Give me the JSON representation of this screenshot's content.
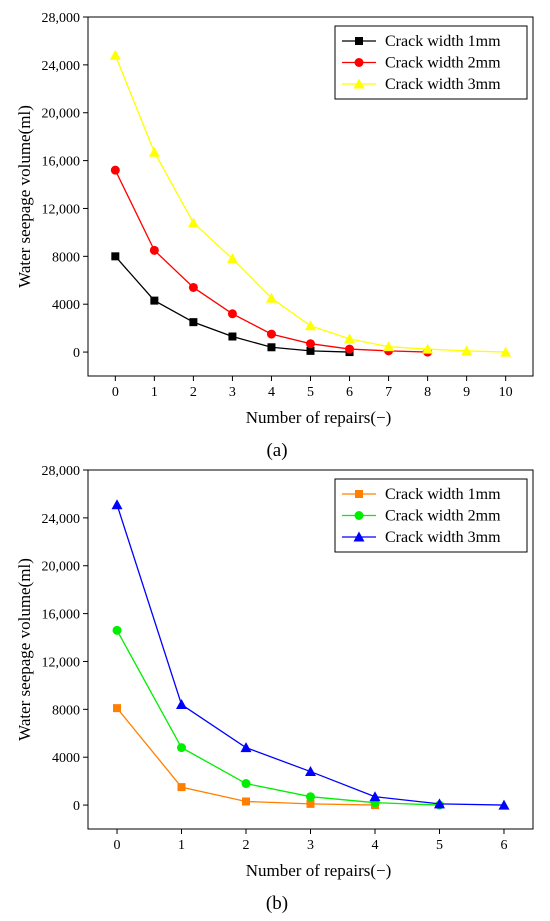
{
  "chart_data": [
    {
      "type": "line",
      "panel_label": "(a)",
      "xlabel": "Number of repairs(−)",
      "ylabel": "Water seepage volume(ml)",
      "xlim": [
        -0.7,
        10.7
      ],
      "ylim": [
        -2000,
        28000
      ],
      "x_ticks": [
        0,
        1,
        2,
        3,
        4,
        5,
        6,
        7,
        8,
        9,
        10
      ],
      "y_ticks": [
        0,
        4000,
        8000,
        12000,
        16000,
        20000,
        24000,
        28000
      ],
      "y_tick_labels": [
        "0",
        "4000",
        "8000",
        "12,000",
        "16,000",
        "20,000",
        "24,000",
        "28,000"
      ],
      "grid": false,
      "legend_position": "top-right",
      "series": [
        {
          "name": "Crack width 1mm",
          "color": "#000000",
          "marker": "square",
          "x": [
            0,
            1,
            2,
            3,
            4,
            5,
            6
          ],
          "y": [
            8000,
            4300,
            2500,
            1300,
            400,
            100,
            0
          ]
        },
        {
          "name": "Crack width 2mm",
          "color": "#ff0000",
          "marker": "circle",
          "x": [
            0,
            1,
            2,
            3,
            4,
            5,
            6,
            7,
            8
          ],
          "y": [
            15200,
            8500,
            5400,
            3200,
            1500,
            700,
            250,
            100,
            0
          ]
        },
        {
          "name": "Crack width 3mm",
          "color": "#ffff00",
          "marker": "triangle",
          "x": [
            0,
            1,
            2,
            3,
            4,
            5,
            6,
            7,
            8,
            9,
            10
          ],
          "y": [
            24800,
            16700,
            10800,
            7800,
            4500,
            2200,
            1100,
            450,
            250,
            100,
            0
          ]
        }
      ]
    },
    {
      "type": "line",
      "panel_label": "(b)",
      "xlabel": "Number of repairs(−)",
      "ylabel": "Water seepage volume(ml)",
      "xlim": [
        -0.45,
        6.45
      ],
      "ylim": [
        -2000,
        28000
      ],
      "x_ticks": [
        0,
        1,
        2,
        3,
        4,
        5,
        6
      ],
      "y_ticks": [
        0,
        4000,
        8000,
        12000,
        16000,
        20000,
        24000,
        28000
      ],
      "y_tick_labels": [
        "0",
        "4000",
        "8000",
        "12,000",
        "16,000",
        "20,000",
        "24,000",
        "28,000"
      ],
      "grid": false,
      "legend_position": "top-right",
      "series": [
        {
          "name": "Crack width 1mm",
          "color": "#ff8000",
          "marker": "square",
          "x": [
            0,
            1,
            2,
            3,
            4
          ],
          "y": [
            8100,
            1500,
            300,
            100,
            0
          ]
        },
        {
          "name": "Crack width 2mm",
          "color": "#00ee00",
          "marker": "circle",
          "x": [
            0,
            1,
            2,
            3,
            4,
            5
          ],
          "y": [
            14600,
            4800,
            1800,
            700,
            200,
            0
          ]
        },
        {
          "name": "Crack width 3mm",
          "color": "#0000ff",
          "marker": "triangle",
          "x": [
            0,
            1,
            2,
            3,
            4,
            5,
            6
          ],
          "y": [
            25100,
            8400,
            4800,
            2800,
            700,
            100,
            0
          ]
        }
      ]
    }
  ]
}
